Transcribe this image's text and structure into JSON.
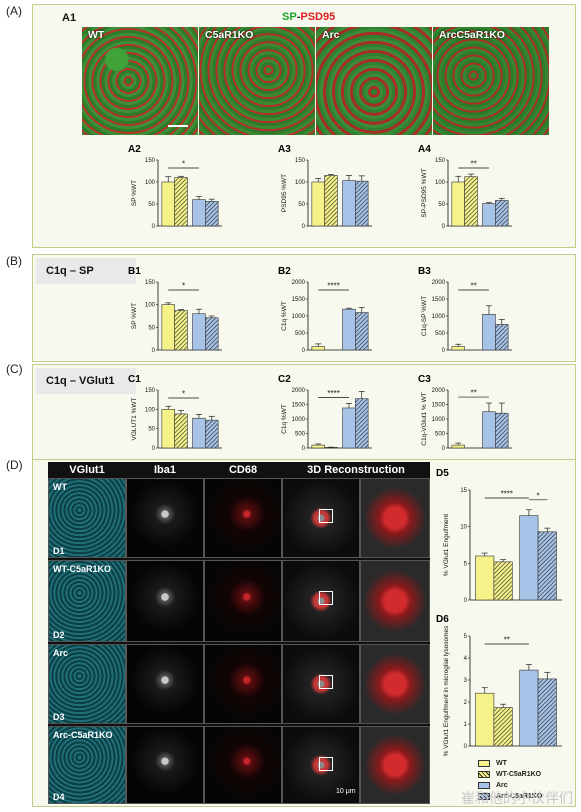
{
  "panel_letters": {
    "A": "(A)",
    "B": "(B)",
    "C": "(C)",
    "D": "(D)"
  },
  "A": {
    "a1_label": "A1",
    "title_sp": "SP",
    "title_dash": "-",
    "title_psd": "PSD95",
    "images": [
      "WT",
      "C5aR1KO",
      "Arc",
      "ArcC5aR1KO"
    ]
  },
  "B": {
    "header": "C1q – SP"
  },
  "C": {
    "header": "C1q – VGlut1"
  },
  "D": {
    "columns": [
      "VGlut1",
      "Iba1",
      "CD68",
      "3D Reconstruction"
    ],
    "rows": [
      {
        "name": "WT",
        "id": "D1"
      },
      {
        "name": "WT-C5aR1KO",
        "id": "D2"
      },
      {
        "name": "Arc",
        "id": "D3"
      },
      {
        "name": "Arc-C5aR1KO",
        "id": "D4"
      }
    ],
    "scalebar": "10 μm"
  },
  "colors": {
    "yellow": "#f6f28a",
    "blue": "#a7c3e8",
    "hatch_yellow": "#f6f28a",
    "hatch_blue": "#a7c3e8"
  },
  "legend": [
    {
      "label": "WT",
      "color": "#f6f28a",
      "hatched": false
    },
    {
      "label": "WT-C5aR1KO",
      "color": "#f6f28a",
      "hatched": true
    },
    {
      "label": "Arc",
      "color": "#a7c3e8",
      "hatched": false
    },
    {
      "label": "Arc-C5aR1KO",
      "color": "#a7c3e8",
      "hatched": true
    }
  ],
  "watermark": "崔和他的小伙伴们",
  "chart_data": [
    {
      "id": "A2",
      "type": "bar",
      "title": "A2",
      "ylabel": "SP %WT",
      "ylim": [
        0,
        150
      ],
      "yticks": [
        0,
        50,
        100,
        150
      ],
      "values": [
        100,
        110,
        60,
        56
      ],
      "errors": [
        12,
        3,
        7,
        5
      ],
      "sig": [
        {
          "from": 0,
          "to": 2,
          "label": "*"
        }
      ]
    },
    {
      "id": "A3",
      "type": "bar",
      "title": "A3",
      "ylabel": "PSD95 %WT",
      "ylim": [
        0,
        150
      ],
      "yticks": [
        0,
        50,
        100,
        150
      ],
      "values": [
        100,
        115,
        103,
        102
      ],
      "errors": [
        8,
        2,
        12,
        12
      ],
      "sig": []
    },
    {
      "id": "A4",
      "type": "bar",
      "title": "A4",
      "ylabel": "SP-PSD95 %WT",
      "ylim": [
        0,
        150
      ],
      "yticks": [
        0,
        50,
        100,
        150
      ],
      "values": [
        100,
        112,
        51,
        58
      ],
      "errors": [
        13,
        6,
        2,
        5
      ],
      "sig": [
        {
          "from": 0,
          "to": 2,
          "label": "**"
        }
      ]
    },
    {
      "id": "B1",
      "type": "bar",
      "title": "B1",
      "ylabel": "SP %WT",
      "ylim": [
        0,
        150
      ],
      "yticks": [
        0,
        50,
        100,
        150
      ],
      "values": [
        100,
        87,
        80,
        71
      ],
      "errors": [
        4,
        2,
        10,
        4
      ],
      "sig": [
        {
          "from": 0,
          "to": 2,
          "label": "*"
        }
      ]
    },
    {
      "id": "B2",
      "type": "bar",
      "title": "B2",
      "ylabel": "C1q %WT",
      "ylim": [
        0,
        2000
      ],
      "yticks": [
        0,
        500,
        1000,
        1500,
        2000
      ],
      "values": [
        100,
        0,
        1200,
        1100
      ],
      "errors": [
        80,
        0,
        30,
        150
      ],
      "sig": [
        {
          "from": 0,
          "to": 2,
          "label": "****"
        }
      ]
    },
    {
      "id": "B3",
      "type": "bar",
      "title": "B3",
      "ylabel": "C1q-SP %WT",
      "ylim": [
        0,
        2000
      ],
      "yticks": [
        0,
        500,
        1000,
        1500,
        2000
      ],
      "values": [
        100,
        0,
        1050,
        750
      ],
      "errors": [
        70,
        0,
        250,
        150
      ],
      "sig": [
        {
          "from": 0,
          "to": 2,
          "label": "**"
        }
      ]
    },
    {
      "id": "C1",
      "type": "bar",
      "title": "C1",
      "ylabel": "VGLUT1 %WT",
      "ylim": [
        0,
        150
      ],
      "yticks": [
        0,
        50,
        100,
        150
      ],
      "values": [
        100,
        88,
        77,
        72
      ],
      "errors": [
        8,
        9,
        10,
        10
      ],
      "sig": [
        {
          "from": 0,
          "to": 2,
          "label": "*"
        }
      ]
    },
    {
      "id": "C2",
      "type": "bar",
      "title": "C2",
      "ylabel": "C1q %WT",
      "ylim": [
        0,
        2000
      ],
      "yticks": [
        0,
        500,
        1000,
        1500,
        2000
      ],
      "values": [
        100,
        20,
        1380,
        1700
      ],
      "errors": [
        40,
        10,
        160,
        250
      ],
      "sig": [
        {
          "from": 0,
          "to": 2,
          "label": "****"
        }
      ]
    },
    {
      "id": "C3",
      "type": "bar",
      "title": "C3",
      "ylabel": "C1q-VGlut1 % WT",
      "ylim": [
        0,
        2000
      ],
      "yticks": [
        0,
        500,
        1000,
        1500,
        2000
      ],
      "values": [
        100,
        0,
        1250,
        1200
      ],
      "errors": [
        70,
        0,
        300,
        350
      ],
      "sig": [
        {
          "from": 0,
          "to": 2,
          "label": "**"
        }
      ]
    },
    {
      "id": "D5",
      "type": "bar",
      "title": "D5",
      "ylabel": "% VGlut1 Engulfment",
      "ylim": [
        0,
        15
      ],
      "yticks": [
        0,
        5,
        10,
        15
      ],
      "values": [
        6.0,
        5.2,
        11.5,
        9.3
      ],
      "errors": [
        0.4,
        0.3,
        0.8,
        0.5
      ],
      "sig": [
        {
          "from": 0,
          "to": 2,
          "label": "****"
        },
        {
          "from": 2,
          "to": 3,
          "label": "*"
        }
      ]
    },
    {
      "id": "D6",
      "type": "bar",
      "title": "D6",
      "ylabel": "% VGlut1 Engulfment in microglial lysosomes",
      "ylim": [
        0,
        5
      ],
      "yticks": [
        0,
        1,
        2,
        3,
        4,
        5
      ],
      "values": [
        2.4,
        1.75,
        3.45,
        3.05
      ],
      "errors": [
        0.25,
        0.15,
        0.25,
        0.3
      ],
      "sig": [
        {
          "from": 0,
          "to": 2,
          "label": "**"
        }
      ]
    }
  ]
}
